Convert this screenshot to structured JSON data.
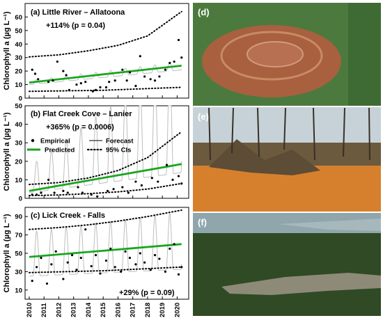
{
  "chart_data": [
    {
      "type": "line",
      "title": "(a) Little River – Allatoona",
      "annotation": "+114% (p = 0.04)",
      "ylabel": "Chlorophyll a (µg L⁻¹)",
      "ylim": [
        0,
        70
      ],
      "yticks": [
        0,
        10,
        20,
        30,
        40,
        50,
        60
      ],
      "xlim": [
        2010,
        2020.5
      ],
      "xticks": [
        "2010",
        "2011",
        "2012",
        "2013",
        "2014",
        "2015",
        "2016",
        "2017",
        "2018",
        "2019",
        "2020"
      ],
      "forecast": {
        "base": 10,
        "amplitude": 3
      },
      "series": [
        {
          "name": "Predicted",
          "x": [
            2010,
            2020.3
          ],
          "y": [
            11.5,
            24
          ]
        },
        {
          "name": "95% CIs",
          "x": [
            2010,
            2012,
            2014,
            2016,
            2018,
            2020.3
          ],
          "y": [
            30.5,
            32,
            35,
            39,
            46,
            64
          ]
        },
        {
          "name": "95% CIs",
          "x": [
            2010,
            2015,
            2020.3
          ],
          "y": [
            5,
            5.8,
            8
          ]
        },
        {
          "name": "Empirical",
          "x": [
            2010.2,
            2010.4,
            2010.6,
            2011.3,
            2011.6,
            2011.9,
            2012.3,
            2012.5,
            2012.7,
            2013.2,
            2013.5,
            2013.8,
            2014.3,
            2014.5,
            2014.8,
            2015.2,
            2015.4,
            2015.8,
            2016.3,
            2016.6,
            2016.8,
            2017.2,
            2017.5,
            2017.8,
            2018.2,
            2018.5,
            2018.8,
            2019.2,
            2019.5,
            2019.8,
            2020.1,
            2020.3
          ],
          "y": [
            21,
            18,
            14,
            12,
            13,
            27,
            20,
            17,
            6,
            10,
            11,
            12,
            5,
            6,
            8,
            8,
            12,
            13,
            21,
            13,
            19,
            9,
            31,
            16,
            14,
            13,
            16,
            21,
            26,
            27,
            43,
            30
          ]
        }
      ]
    },
    {
      "type": "line",
      "title": "(b) Flat Creek Cove – Lanier",
      "annotation": "+365% (p = 0.0006)",
      "ylabel": "Chlorophyll a (µg L⁻¹)",
      "ylim": [
        0,
        50
      ],
      "yticks": [
        0,
        10,
        20,
        30,
        40,
        50
      ],
      "xlim": [
        2010,
        2020.5
      ],
      "xticks": [
        "2010",
        "2011",
        "2012",
        "2013",
        "2014",
        "2015",
        "2016",
        "2017",
        "2018",
        "2019",
        "2020"
      ],
      "forecast": {
        "base": 3,
        "amplitude": 14
      },
      "legend": [
        "Empirical",
        "Forecast",
        "Predicted",
        "95% CIs"
      ],
      "series": [
        {
          "name": "Predicted",
          "x": [
            2010,
            2020.3
          ],
          "y": [
            4,
            18.5
          ]
        },
        {
          "name": "95% CIs",
          "x": [
            2010,
            2012,
            2014,
            2016,
            2018,
            2020.3
          ],
          "y": [
            7.5,
            8.5,
            11,
            15,
            22,
            36
          ]
        },
        {
          "name": "95% CIs",
          "x": [
            2010,
            2012,
            2014,
            2016,
            2018,
            2020.3
          ],
          "y": [
            1.5,
            1.8,
            2.5,
            3.5,
            5,
            8
          ]
        },
        {
          "name": "Empirical",
          "x": [
            2010.2,
            2010.5,
            2010.8,
            2011.3,
            2011.7,
            2012.3,
            2012.6,
            2013.3,
            2013.6,
            2014.2,
            2014.6,
            2015.3,
            2015.7,
            2016.3,
            2016.7,
            2017.2,
            2017.6,
            2018.3,
            2018.7,
            2019.3,
            2019.7,
            2020.1,
            2020.3
          ],
          "y": [
            2,
            2,
            3,
            10,
            3,
            4,
            3,
            6,
            3,
            2,
            1,
            4,
            5,
            6,
            3,
            9,
            7,
            11,
            9,
            18,
            10,
            12,
            8
          ]
        }
      ]
    },
    {
      "type": "line",
      "title": "(c) Lick Creek - Falls",
      "annotation": "+29% (p = 0.09)",
      "ylabel": "Chlorophyll a (µg L⁻¹)",
      "ylim": [
        0,
        100
      ],
      "yticks": [
        10,
        30,
        50,
        70,
        90
      ],
      "xlim": [
        2010,
        2020.5
      ],
      "xticks": [
        "2010",
        "2011",
        "2012",
        "2013",
        "2014",
        "2015",
        "2016",
        "2017",
        "2018",
        "2019",
        "2020"
      ],
      "forecast": {
        "base": 25,
        "amplitude": 48
      },
      "series": [
        {
          "name": "Predicted",
          "x": [
            2010,
            2020.3
          ],
          "y": [
            46,
            60
          ]
        },
        {
          "name": "95% CIs",
          "x": [
            2010,
            2012,
            2014,
            2016,
            2018,
            2020.3
          ],
          "y": [
            76,
            78,
            81,
            85,
            90,
            97
          ]
        },
        {
          "name": "95% CIs",
          "x": [
            2010,
            2015,
            2020.3
          ],
          "y": [
            29,
            31,
            35
          ]
        },
        {
          "name": "Empirical",
          "x": [
            2010.2,
            2010.5,
            2010.8,
            2011.2,
            2011.5,
            2011.8,
            2012.3,
            2012.6,
            2012.9,
            2013.2,
            2013.5,
            2013.8,
            2014.2,
            2014.5,
            2014.8,
            2015.2,
            2015.5,
            2015.8,
            2016.2,
            2016.5,
            2016.8,
            2017.2,
            2017.5,
            2017.8,
            2018.2,
            2018.5,
            2018.8,
            2019.2,
            2019.5,
            2019.8,
            2020.1,
            2020.3
          ],
          "y": [
            20,
            35,
            45,
            17,
            38,
            52,
            22,
            40,
            48,
            32,
            45,
            76,
            36,
            48,
            28,
            42,
            55,
            35,
            30,
            52,
            45,
            38,
            50,
            40,
            32,
            48,
            44,
            30,
            55,
            60,
            27,
            35
          ]
        }
      ]
    }
  ],
  "photos": [
    {
      "label": "(d)",
      "sky": "#4c7a3e",
      "ground": "#a8603f"
    },
    {
      "label": "(e)",
      "sky": "#c6d2d8",
      "ground": "#d6802e"
    },
    {
      "label": "(f)",
      "sky": "#8fa6ad",
      "ground": "#2f4a24"
    }
  ],
  "colors": {
    "predicted": "#19a61d",
    "forecast": "#bdbdbd",
    "ci": "#000000",
    "empirical": "#000000"
  }
}
